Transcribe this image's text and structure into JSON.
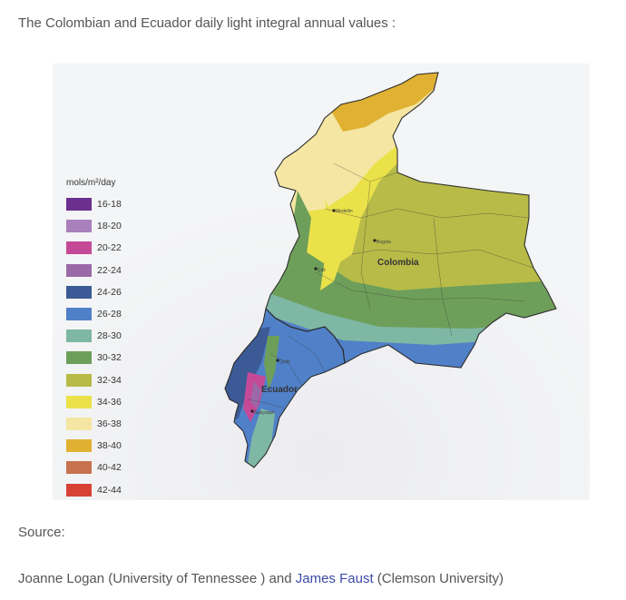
{
  "intro": "The Colombian and Ecuador daily light integral annual values :",
  "map": {
    "legend_title": "mols/m²/day",
    "legend": [
      {
        "label": "16-18",
        "color": "#6b2f8f"
      },
      {
        "label": "18-20",
        "color": "#a97fbc"
      },
      {
        "label": "20-22",
        "color": "#c44a98"
      },
      {
        "label": "22-24",
        "color": "#9a6aa8"
      },
      {
        "label": "24-26",
        "color": "#3c5a95"
      },
      {
        "label": "26-28",
        "color": "#5080c8"
      },
      {
        "label": "28-30",
        "color": "#7fb7a5"
      },
      {
        "label": "30-32",
        "color": "#6e9f5a"
      },
      {
        "label": "32-34",
        "color": "#b8bb47"
      },
      {
        "label": "34-36",
        "color": "#ebe24a"
      },
      {
        "label": "36-38",
        "color": "#f5e7a3"
      },
      {
        "label": "38-40",
        "color": "#e0b132"
      },
      {
        "label": "40-42",
        "color": "#c8714e"
      },
      {
        "label": "42-44",
        "color": "#d84235"
      }
    ],
    "country_labels": {
      "colombia": "Colombia",
      "ecuador": "Ecuador"
    },
    "city_labels": {
      "medellin": "Medellin",
      "bogota": "Bogota",
      "cali": "Cali",
      "quito": "Quito",
      "guayaquil": "Guayaquil"
    }
  },
  "source_label": "Source:",
  "credit": {
    "author1": "Joanne Logan (University of Tennessee ) and ",
    "author2_link": "James Faust",
    "author2_affil": " (Clemson University)"
  }
}
